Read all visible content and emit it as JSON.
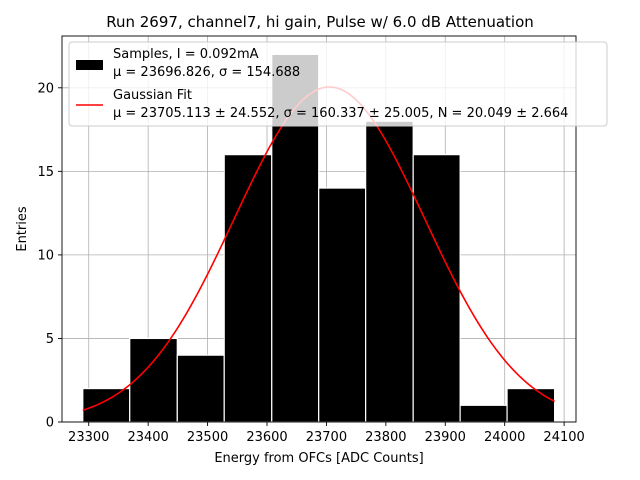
{
  "chart_data": {
    "type": "bar",
    "title": "Run 2697, channel7, hi gain, Pulse w/ 6.0 dB Attenuation",
    "xlabel": "Energy from OFCs [ADC Counts]",
    "ylabel": "Entries",
    "xlim": [
      23255,
      24120
    ],
    "ylim": [
      0,
      23.1
    ],
    "grid": true,
    "legend_position": "top-right",
    "bin_edges": [
      23290,
      23369,
      23449,
      23528,
      23608,
      23687,
      23766,
      23846,
      23925,
      24004,
      24084
    ],
    "values": [
      2,
      5,
      4,
      16,
      22,
      14,
      18,
      16,
      1,
      2
    ],
    "xticks": [
      23300,
      23400,
      23500,
      23600,
      23700,
      23800,
      23900,
      24000,
      24100
    ],
    "yticks": [
      0,
      5,
      10,
      15,
      20
    ],
    "series": [
      {
        "name": "Samples, I = 0.092mA",
        "stats": "μ = 23696.826, σ = 154.688",
        "kind": "histogram",
        "color": "#000000"
      },
      {
        "name": "Gaussian Fit",
        "stats": "μ = 23705.113 ± 24.552, σ = 160.337 ± 25.005, N = 20.049 ± 2.664",
        "kind": "line",
        "color": "#ff0000",
        "mu": 23705.113,
        "sigma": 160.337,
        "N": 20.049,
        "x_range": [
          23290,
          24084
        ]
      }
    ]
  }
}
